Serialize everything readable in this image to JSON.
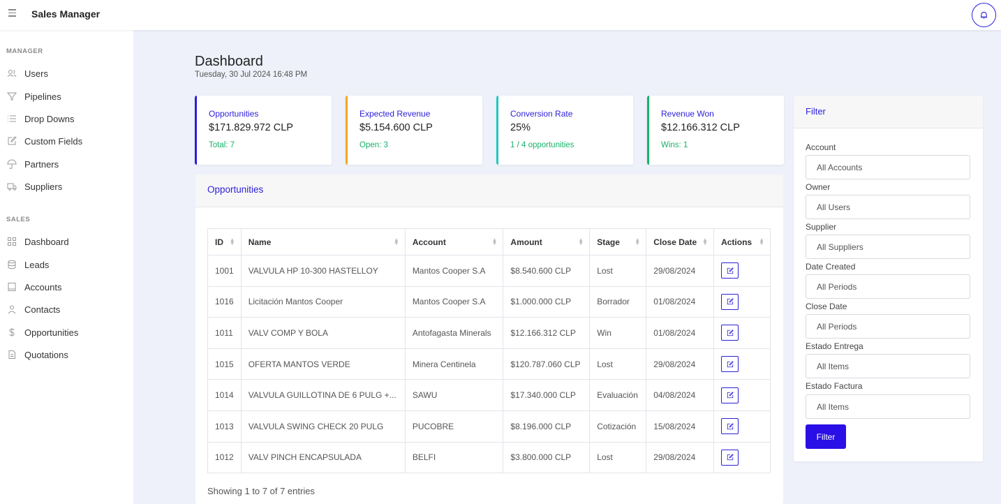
{
  "app": {
    "title": "Sales Manager"
  },
  "sidebar": {
    "manager_label": "MANAGER",
    "manager_items": [
      {
        "label": "Users",
        "icon": "users-icon"
      },
      {
        "label": "Pipelines",
        "icon": "filter-icon"
      },
      {
        "label": "Drop Downs",
        "icon": "list-icon"
      },
      {
        "label": "Custom Fields",
        "icon": "edit-icon"
      },
      {
        "label": "Partners",
        "icon": "umbrella-icon"
      },
      {
        "label": "Suppliers",
        "icon": "truck-icon"
      }
    ],
    "sales_label": "SALES",
    "sales_items": [
      {
        "label": "Dashboard",
        "icon": "grid-icon"
      },
      {
        "label": "Leads",
        "icon": "database-icon"
      },
      {
        "label": "Accounts",
        "icon": "book-icon"
      },
      {
        "label": "Contacts",
        "icon": "user-icon"
      },
      {
        "label": "Opportunities",
        "icon": "dollar-icon"
      },
      {
        "label": "Quotations",
        "icon": "file-icon"
      }
    ]
  },
  "page": {
    "title": "Dashboard",
    "date": "Tuesday, 30 Jul 2024 16:48 PM"
  },
  "stats": [
    {
      "label": "Opportunities",
      "value": "$171.829.972 CLP",
      "sub": "Total: 7",
      "color": "#2b1fd6"
    },
    {
      "label": "Expected Revenue",
      "value": "$5.154.600 CLP",
      "sub": "Open: 3",
      "color": "#f5a623"
    },
    {
      "label": "Conversion Rate",
      "value": "25%",
      "sub": "1 / 4 opportunities",
      "color": "#1ec9c0"
    },
    {
      "label": "Revenue Won",
      "value": "$12.166.312 CLP",
      "sub": "Wins: 1",
      "color": "#17b26a"
    }
  ],
  "opportunities": {
    "title": "Opportunities",
    "columns": [
      "ID",
      "Name",
      "Account",
      "Amount",
      "Stage",
      "Close Date",
      "Actions"
    ],
    "rows": [
      {
        "id": "1001",
        "name": "VALVULA HP 10-300 HASTELLOY",
        "account": "Mantos Cooper S.A",
        "amount": "$8.540.600 CLP",
        "stage": "Lost",
        "close": "29/08/2024"
      },
      {
        "id": "1016",
        "name": "Licitación Mantos Cooper",
        "account": "Mantos Cooper S.A",
        "amount": "$1.000.000 CLP",
        "stage": "Borrador",
        "close": "01/08/2024"
      },
      {
        "id": "1011",
        "name": "VALV COMP Y BOLA",
        "account": "Antofagasta Minerals",
        "amount": "$12.166.312 CLP",
        "stage": "Win",
        "close": "01/08/2024"
      },
      {
        "id": "1015",
        "name": "OFERTA MANTOS VERDE",
        "account": "Minera Centinela",
        "amount": "$120.787.060 CLP",
        "stage": "Lost",
        "close": "29/08/2024"
      },
      {
        "id": "1014",
        "name": "VALVULA GUILLOTINA DE 6 PULG +...",
        "account": "SAWU",
        "amount": "$17.340.000 CLP",
        "stage": "Evaluación",
        "close": "04/08/2024"
      },
      {
        "id": "1013",
        "name": "VALVULA SWING CHECK 20 PULG",
        "account": "PUCOBRE",
        "amount": "$8.196.000 CLP",
        "stage": "Cotización",
        "close": "15/08/2024"
      },
      {
        "id": "1012",
        "name": "VALV PINCH ENCAPSULADA",
        "account": "BELFI",
        "amount": "$3.800.000 CLP",
        "stage": "Lost",
        "close": "29/08/2024"
      }
    ],
    "footer": "Showing 1 to 7 of 7 entries"
  },
  "filter": {
    "title": "Filter",
    "fields": [
      {
        "label": "Account",
        "value": "All Accounts"
      },
      {
        "label": "Owner",
        "value": "All Users"
      },
      {
        "label": "Supplier",
        "value": "All Suppliers"
      },
      {
        "label": "Date Created",
        "value": "All Periods"
      },
      {
        "label": "Close Date",
        "value": "All Periods"
      },
      {
        "label": "Estado Entrega",
        "value": "All Items"
      },
      {
        "label": "Estado Factura",
        "value": "All Items"
      }
    ],
    "button": "Filter"
  }
}
